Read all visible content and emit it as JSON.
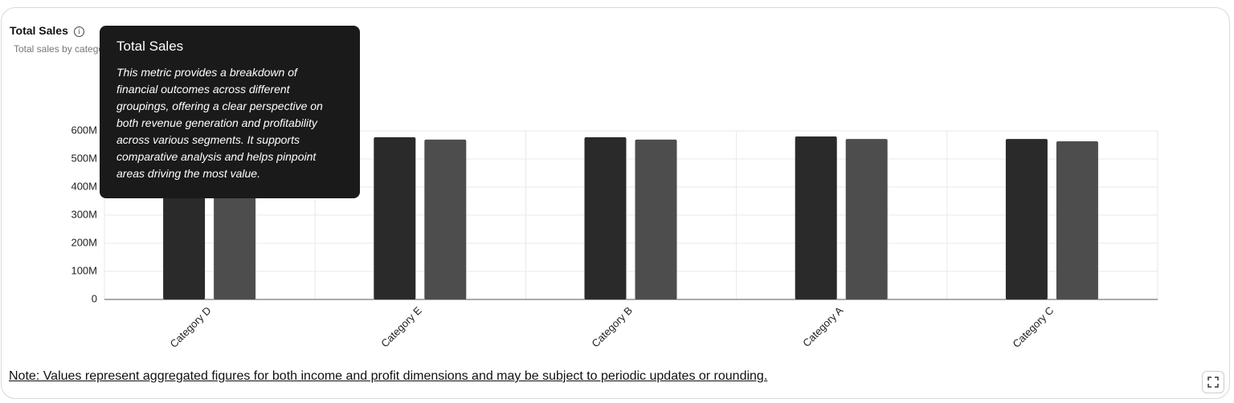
{
  "card": {
    "title": "Total Sales",
    "subtitle": "Total sales by category",
    "note": "Note: Values represent aggregated figures for both income and profit dimensions and may be subject to periodic updates or rounding."
  },
  "tooltip": {
    "title": "Total Sales",
    "body": "This metric provides a breakdown of financial outcomes across different groupings, offering a clear perspective on both revenue generation and profitability across various segments. It supports comparative analysis and helps pinpoint areas driving the most value."
  },
  "chart_data": {
    "type": "bar",
    "categories": [
      "Category D",
      "Category E",
      "Category B",
      "Category A",
      "Category C"
    ],
    "series": [
      {
        "color": "#2a2a2a",
        "values": [
          578000000,
          577000000,
          577000000,
          580000000,
          571000000
        ]
      },
      {
        "color": "#4d4d4d",
        "values": [
          568000000,
          569000000,
          569000000,
          571000000,
          563000000
        ]
      }
    ],
    "ylim": [
      0,
      600000000
    ],
    "yticks": [
      0,
      {
        "value": 100000000,
        "label": "100M"
      },
      {
        "value": 200000000,
        "label": "200M"
      },
      {
        "value": 300000000,
        "label": "300M"
      },
      {
        "value": 400000000,
        "label": "400M"
      },
      {
        "value": 500000000,
        "label": "500M"
      },
      {
        "value": 600000000,
        "label": "600M"
      }
    ],
    "grid": true
  }
}
